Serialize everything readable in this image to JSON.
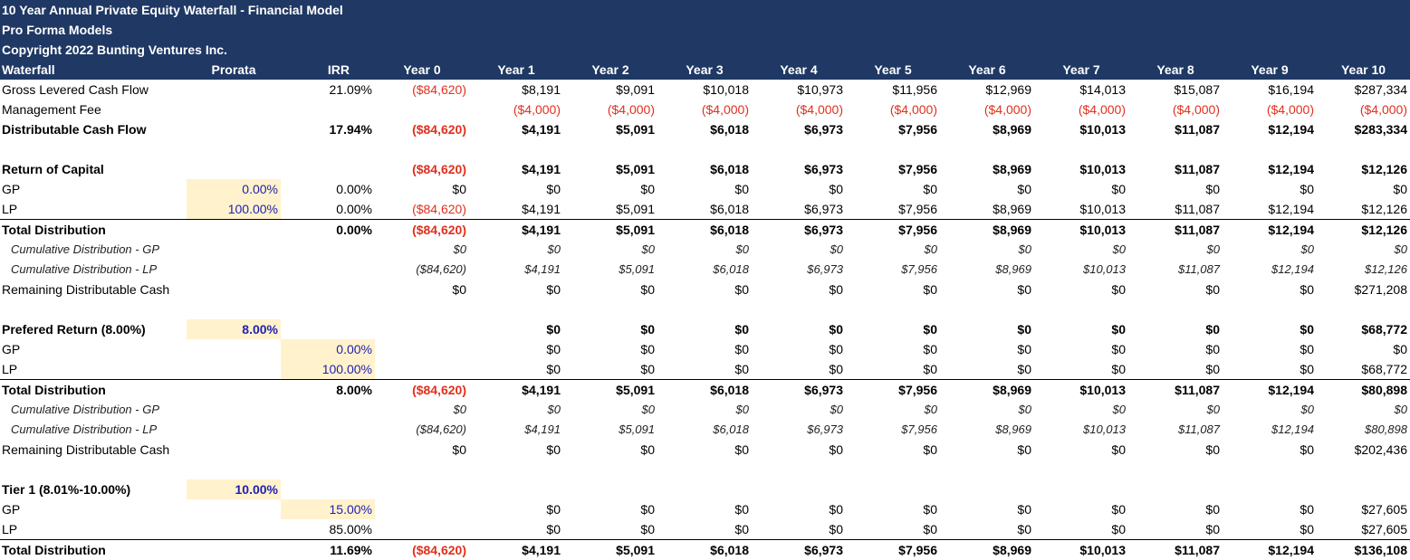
{
  "header": {
    "title": "10 Year Annual Private Equity Waterfall - Financial Model",
    "subtitle": "Pro Forma Models",
    "copyright": "Copyright 2022 Bunting Ventures Inc."
  },
  "table": {
    "label_header": "Waterfall",
    "prorata_header": "Prorata",
    "irr_header": "IRR",
    "years": [
      "Year 0",
      "Year 1",
      "Year 2",
      "Year 3",
      "Year 4",
      "Year 5",
      "Year 6",
      "Year 7",
      "Year 8",
      "Year 9",
      "Year 10"
    ],
    "rows": [
      {
        "style": "",
        "label": "Gross Levered Cash Flow",
        "prorata": "",
        "irr": "21.09%",
        "values": [
          "($84,620)",
          "$8,191",
          "$9,091",
          "$10,018",
          "$10,973",
          "$11,956",
          "$12,969",
          "$14,013",
          "$15,087",
          "$16,194",
          "$287,334"
        ]
      },
      {
        "style": "",
        "label": "Management Fee",
        "prorata": "",
        "irr": "",
        "values": [
          "",
          "($4,000)",
          "($4,000)",
          "($4,000)",
          "($4,000)",
          "($4,000)",
          "($4,000)",
          "($4,000)",
          "($4,000)",
          "($4,000)",
          "($4,000)"
        ]
      },
      {
        "style": "bold",
        "label": "Distributable Cash Flow",
        "prorata": "",
        "irr": "17.94%",
        "values": [
          "($84,620)",
          "$4,191",
          "$5,091",
          "$6,018",
          "$6,973",
          "$7,956",
          "$8,969",
          "$10,013",
          "$11,087",
          "$12,194",
          "$283,334"
        ]
      },
      {
        "style": "blank"
      },
      {
        "style": "bold",
        "label": "Return of Capital",
        "prorata": "",
        "irr": "",
        "values": [
          "($84,620)",
          "$4,191",
          "$5,091",
          "$6,018",
          "$6,973",
          "$7,956",
          "$8,969",
          "$10,013",
          "$11,087",
          "$12,194",
          "$12,126"
        ]
      },
      {
        "style": "",
        "label": "GP",
        "prorata": "0.00%",
        "prorata_input": true,
        "irr": "0.00%",
        "values": [
          "$0",
          "$0",
          "$0",
          "$0",
          "$0",
          "$0",
          "$0",
          "$0",
          "$0",
          "$0",
          "$0"
        ]
      },
      {
        "style": "",
        "label": "LP",
        "prorata": "100.00%",
        "prorata_input": true,
        "irr": "0.00%",
        "values": [
          "($84,620)",
          "$4,191",
          "$5,091",
          "$6,018",
          "$6,973",
          "$7,956",
          "$8,969",
          "$10,013",
          "$11,087",
          "$12,194",
          "$12,126"
        ]
      },
      {
        "style": "bold total",
        "label": "Total Distribution",
        "prorata": "",
        "irr": "0.00%",
        "values": [
          "($84,620)",
          "$4,191",
          "$5,091",
          "$6,018",
          "$6,973",
          "$7,956",
          "$8,969",
          "$10,013",
          "$11,087",
          "$12,194",
          "$12,126"
        ]
      },
      {
        "style": "cum",
        "label": "Cumulative Distribution - GP",
        "prorata": "",
        "irr": "",
        "values": [
          "$0",
          "$0",
          "$0",
          "$0",
          "$0",
          "$0",
          "$0",
          "$0",
          "$0",
          "$0",
          "$0"
        ]
      },
      {
        "style": "cum",
        "label": "Cumulative Distribution - LP",
        "prorata": "",
        "irr": "",
        "values": [
          "($84,620)",
          "$4,191",
          "$5,091",
          "$6,018",
          "$6,973",
          "$7,956",
          "$8,969",
          "$10,013",
          "$11,087",
          "$12,194",
          "$12,126"
        ]
      },
      {
        "style": "",
        "label": "Remaining Distributable Cash",
        "prorata": "",
        "irr": "",
        "values": [
          "$0",
          "$0",
          "$0",
          "$0",
          "$0",
          "$0",
          "$0",
          "$0",
          "$0",
          "$0",
          "$271,208"
        ]
      },
      {
        "style": "blank"
      },
      {
        "style": "bold",
        "label": "Prefered Return (8.00%)",
        "prorata": "8.00%",
        "prorata_input": true,
        "irr": "",
        "values": [
          "",
          "$0",
          "$0",
          "$0",
          "$0",
          "$0",
          "$0",
          "$0",
          "$0",
          "$0",
          "$68,772"
        ]
      },
      {
        "style": "",
        "label": "GP",
        "prorata": "",
        "irr": "0.00%",
        "irr_input": true,
        "values": [
          "",
          "$0",
          "$0",
          "$0",
          "$0",
          "$0",
          "$0",
          "$0",
          "$0",
          "$0",
          "$0"
        ]
      },
      {
        "style": "",
        "label": "LP",
        "prorata": "",
        "irr": "100.00%",
        "irr_input": true,
        "values": [
          "",
          "$0",
          "$0",
          "$0",
          "$0",
          "$0",
          "$0",
          "$0",
          "$0",
          "$0",
          "$68,772"
        ]
      },
      {
        "style": "bold total",
        "label": "Total Distribution",
        "prorata": "",
        "irr": "8.00%",
        "values": [
          "($84,620)",
          "$4,191",
          "$5,091",
          "$6,018",
          "$6,973",
          "$7,956",
          "$8,969",
          "$10,013",
          "$11,087",
          "$12,194",
          "$80,898"
        ]
      },
      {
        "style": "cum",
        "label": "Cumulative Distribution - GP",
        "prorata": "",
        "irr": "",
        "values": [
          "$0",
          "$0",
          "$0",
          "$0",
          "$0",
          "$0",
          "$0",
          "$0",
          "$0",
          "$0",
          "$0"
        ]
      },
      {
        "style": "cum",
        "label": "Cumulative Distribution - LP",
        "prorata": "",
        "irr": "",
        "values": [
          "($84,620)",
          "$4,191",
          "$5,091",
          "$6,018",
          "$6,973",
          "$7,956",
          "$8,969",
          "$10,013",
          "$11,087",
          "$12,194",
          "$80,898"
        ]
      },
      {
        "style": "",
        "label": "Remaining Distributable Cash",
        "prorata": "",
        "irr": "",
        "values": [
          "$0",
          "$0",
          "$0",
          "$0",
          "$0",
          "$0",
          "$0",
          "$0",
          "$0",
          "$0",
          "$202,436"
        ]
      },
      {
        "style": "blank"
      },
      {
        "style": "bold",
        "label": "Tier 1 (8.01%-10.00%)",
        "prorata": "10.00%",
        "prorata_input": true,
        "irr": "",
        "values": [
          "",
          "",
          "",
          "",
          "",
          "",
          "",
          "",
          "",
          "",
          ""
        ]
      },
      {
        "style": "",
        "label": "GP",
        "prorata": "",
        "irr": "15.00%",
        "irr_input": true,
        "values": [
          "",
          "$0",
          "$0",
          "$0",
          "$0",
          "$0",
          "$0",
          "$0",
          "$0",
          "$0",
          "$27,605"
        ]
      },
      {
        "style": "",
        "label": "LP",
        "prorata": "",
        "irr": "85.00%",
        "values": [
          "",
          "$0",
          "$0",
          "$0",
          "$0",
          "$0",
          "$0",
          "$0",
          "$0",
          "$0",
          "$27,605"
        ]
      },
      {
        "style": "bold total",
        "label": "Total Distribution",
        "prorata": "",
        "irr": "11.69%",
        "values": [
          "($84,620)",
          "$4,191",
          "$5,091",
          "$6,018",
          "$6,973",
          "$7,956",
          "$8,969",
          "$10,013",
          "$11,087",
          "$12,194",
          "$136,108"
        ]
      }
    ]
  }
}
